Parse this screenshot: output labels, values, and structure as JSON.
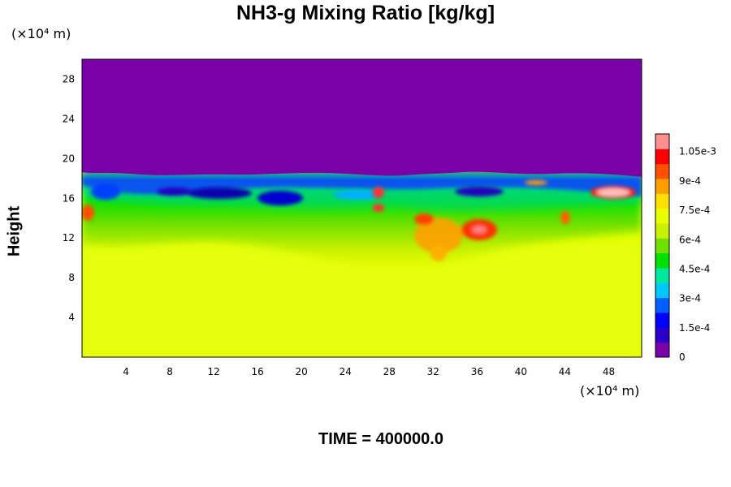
{
  "chart_data": {
    "type": "heatmap",
    "title": "NH3-g Mixing Ratio [kg/kg]",
    "ylabel": "Height",
    "xlabel": "",
    "x_unit": "(×10⁴ m)",
    "y_unit": "(×10⁴ m)",
    "footer": "TIME = 400000.0",
    "xlim": [
      0,
      51
    ],
    "ylim": [
      0,
      30
    ],
    "x_ticks": [
      "4",
      "8",
      "12",
      "16",
      "20",
      "24",
      "28",
      "32",
      "36",
      "40",
      "44",
      "48"
    ],
    "y_ticks": [
      "4",
      "8",
      "12",
      "16",
      "20",
      "24",
      "28"
    ],
    "colorbar": {
      "range": [
        0,
        0.00114
      ],
      "labels": [
        "0",
        "1.5e-4",
        "3e-4",
        "4.5e-4",
        "6e-4",
        "7.5e-4",
        "9e-4",
        "1.05e-3"
      ],
      "colors": [
        "#7b00a8",
        "#2a00c8",
        "#0000ff",
        "#0060ff",
        "#00c8ff",
        "#00e8a0",
        "#00e000",
        "#70e000",
        "#c8f000",
        "#e8ff00",
        "#ffe000",
        "#ffa000",
        "#ff5000",
        "#ff0000",
        "#ff9090"
      ]
    },
    "fields": {
      "upper_region": {
        "height_range": [
          18,
          30
        ],
        "value": 0
      },
      "lower_region": {
        "height_range": [
          0,
          11
        ],
        "value": 0.00079
      },
      "mixing_layer": {
        "height_range": [
          11,
          18
        ],
        "value_range": [
          5e-05,
          0.00112
        ]
      }
    },
    "colors": {
      "background": "#ffffff",
      "text": "#000000"
    }
  }
}
